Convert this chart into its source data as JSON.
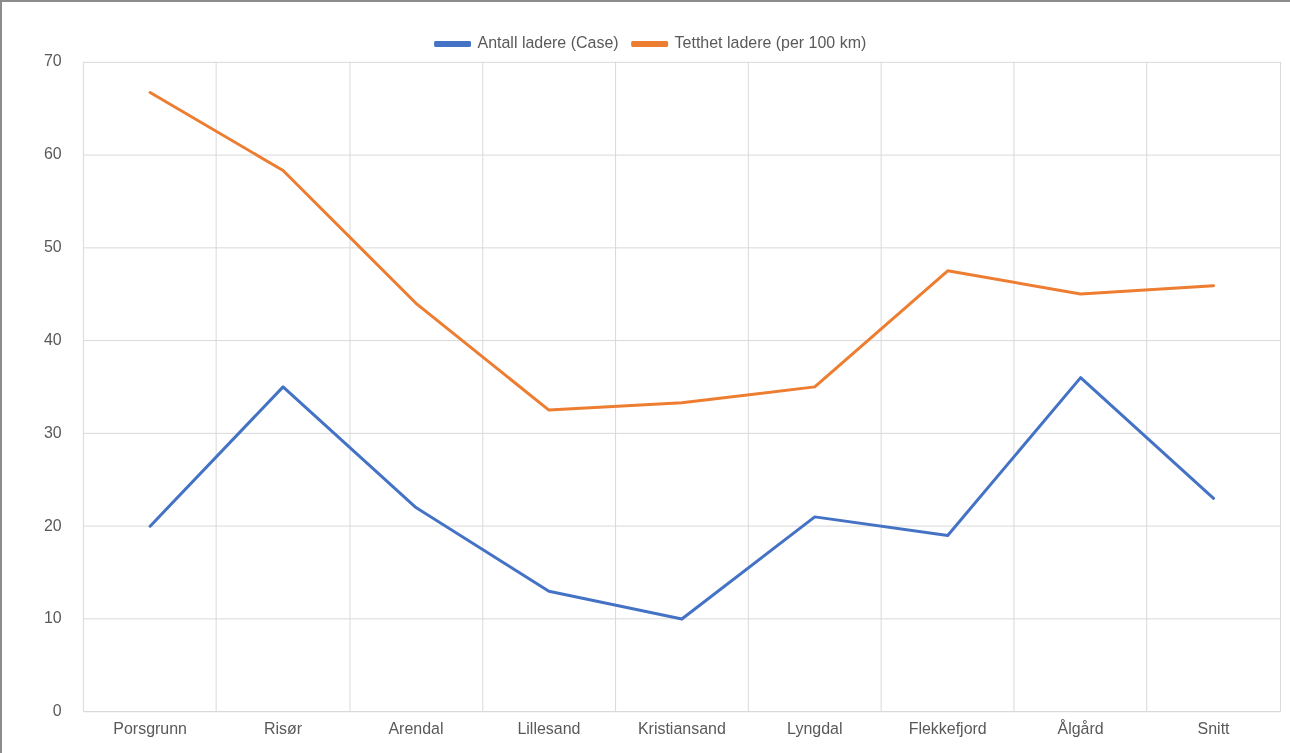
{
  "chart_data": {
    "type": "line",
    "categories": [
      "Porsgrunn",
      "Risør",
      "Arendal",
      "Lillesand",
      "Kristiansand",
      "Lyngdal",
      "Flekkefjord",
      "Ålgård",
      "Snitt"
    ],
    "series": [
      {
        "name": "Antall ladere (Case)",
        "color": "#4472c4",
        "values": [
          20,
          35,
          22,
          13,
          10,
          21,
          19,
          36,
          23
        ]
      },
      {
        "name": "Tetthet ladere (per 100 km)",
        "color": "#ed7d31",
        "values": [
          66.7,
          58.3,
          44.0,
          32.5,
          33.3,
          35.0,
          47.5,
          45.0,
          45.9
        ]
      }
    ],
    "ylim": [
      0,
      70
    ],
    "yticks": [
      0,
      10,
      20,
      30,
      40,
      50,
      60,
      70
    ],
    "grid": true,
    "legend": "top",
    "marker": "none",
    "line_style": "solid"
  }
}
